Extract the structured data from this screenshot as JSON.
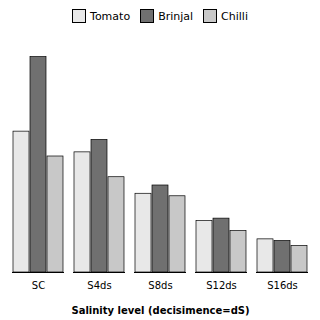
{
  "chart_data": {
    "type": "bar",
    "categories": [
      "SC",
      "S4ds",
      "S8ds",
      "S12ds",
      "S16ds"
    ],
    "series": [
      {
        "name": "Tomato",
        "color": "#e8e8e8",
        "values": [
          17.0,
          14.5,
          9.5,
          6.2,
          4.0
        ]
      },
      {
        "name": "Brinjal",
        "color": "#707070",
        "values": [
          26.0,
          16.0,
          10.5,
          6.5,
          3.8
        ]
      },
      {
        "name": "Chilli",
        "color": "#c8c8c8",
        "values": [
          14.0,
          11.5,
          9.2,
          5.0,
          3.2
        ]
      }
    ],
    "xlabel": "Salinity level (decisimence=dS)",
    "ylim": [
      0,
      28
    ],
    "legend": "top",
    "tick_labels": "x"
  }
}
